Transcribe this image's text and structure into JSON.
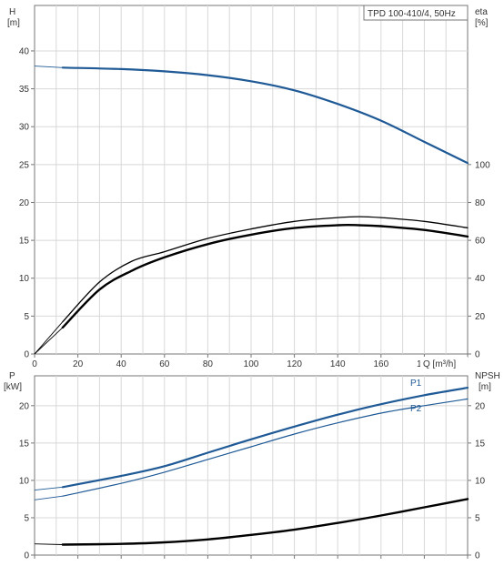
{
  "colors": {
    "head": "#1f5a96",
    "power": "#1f5a96",
    "efficiency": "#000000",
    "npsh": "#000000",
    "grid": "#d8d8d8"
  },
  "chart_data": [
    {
      "type": "line",
      "title": "TPD 100-410/4, 50Hz",
      "xlabel": "Q [m³/h]",
      "ylabel_left": [
        "H",
        "[m]"
      ],
      "ylabel_right": [
        "eta",
        "[%]"
      ],
      "xlim": [
        0,
        200
      ],
      "ylim_left": [
        0,
        46
      ],
      "ylim_right": [
        0,
        184
      ],
      "x_ticks": [
        "0",
        "20",
        "40",
        "60",
        "80",
        "100",
        "120",
        "140",
        "160",
        "180"
      ],
      "y_ticks_left": [
        "0",
        "5",
        "10",
        "15",
        "20",
        "25",
        "30",
        "35",
        "40"
      ],
      "y_ticks_right": [
        "0",
        "20",
        "40",
        "60",
        "80",
        "100"
      ],
      "x_axis_unit_label": "Q [m³/h]",
      "grid": true,
      "series": [
        {
          "axis": "left",
          "style": "head",
          "x": [
            0,
            13,
            40,
            60,
            80,
            100,
            120,
            140,
            160,
            180,
            200
          ],
          "values": [
            38.0,
            37.8,
            37.6,
            37.3,
            36.8,
            36.0,
            34.8,
            33.0,
            30.8,
            28.0,
            25.2
          ]
        },
        {
          "axis": "right",
          "style": "efficiency-thin",
          "x": [
            0,
            13,
            30,
            45,
            60,
            80,
            100,
            120,
            140,
            150,
            160,
            180,
            200
          ],
          "values": [
            0,
            17,
            38,
            49,
            54,
            61,
            66,
            70,
            72,
            72.5,
            72,
            70,
            66.6
          ]
        },
        {
          "axis": "right",
          "style": "efficiency-thick",
          "x": [
            0,
            13,
            30,
            45,
            60,
            80,
            100,
            120,
            140,
            150,
            160,
            180,
            200
          ],
          "values": [
            0,
            14,
            34,
            44,
            51,
            58,
            63,
            66.5,
            68,
            68,
            67.5,
            65.5,
            62
          ]
        }
      ]
    },
    {
      "type": "line",
      "ylabel_left": [
        "P",
        "[kW]"
      ],
      "ylabel_right": [
        "NPSH",
        "[m]"
      ],
      "xlim": [
        0,
        200
      ],
      "ylim_left": [
        0,
        24
      ],
      "ylim_right": [
        0,
        24
      ],
      "y_ticks_left": [
        "0",
        "5",
        "10",
        "15",
        "20"
      ],
      "y_ticks_right": [
        "0",
        "5",
        "10",
        "15",
        "20"
      ],
      "grid": true,
      "series": [
        {
          "name": "P1",
          "axis": "left",
          "style": "power-thick",
          "x": [
            0,
            13,
            40,
            60,
            80,
            100,
            120,
            140,
            160,
            180,
            200
          ],
          "values": [
            8.7,
            9.1,
            10.6,
            11.9,
            13.7,
            15.5,
            17.2,
            18.8,
            20.2,
            21.4,
            22.4
          ]
        },
        {
          "name": "P2",
          "axis": "left",
          "style": "power-thin",
          "x": [
            0,
            13,
            40,
            60,
            80,
            100,
            120,
            140,
            160,
            180,
            200
          ],
          "values": [
            7.4,
            7.9,
            9.6,
            11.1,
            12.8,
            14.5,
            16.2,
            17.7,
            19.0,
            20.0,
            20.9
          ]
        },
        {
          "name": "",
          "axis": "right",
          "style": "npsh",
          "x": [
            0,
            13,
            40,
            60,
            80,
            100,
            120,
            140,
            160,
            180,
            200
          ],
          "values": [
            1.5,
            1.4,
            1.5,
            1.7,
            2.1,
            2.7,
            3.4,
            4.3,
            5.3,
            6.4,
            7.5
          ]
        }
      ]
    }
  ]
}
